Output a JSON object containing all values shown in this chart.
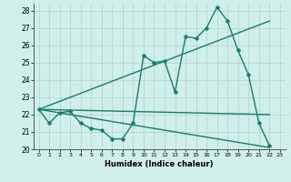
{
  "xlabel": "Humidex (Indice chaleur)",
  "xlim": [
    -0.5,
    23.5
  ],
  "ylim": [
    20,
    28.4
  ],
  "yticks": [
    20,
    21,
    22,
    23,
    24,
    25,
    26,
    27,
    28
  ],
  "xticks": [
    0,
    1,
    2,
    3,
    4,
    5,
    6,
    7,
    8,
    9,
    10,
    11,
    12,
    13,
    14,
    15,
    16,
    17,
    18,
    19,
    20,
    21,
    22,
    23
  ],
  "bg_color": "#d0eeea",
  "grid_color": "#b0d8d2",
  "line_color": "#1a7a6e",
  "line_width": 1.0,
  "marker_size": 2.5,
  "series": [
    {
      "x": [
        0,
        1,
        2,
        3,
        4,
        5,
        6,
        7,
        8,
        9,
        10,
        11,
        12,
        13,
        14,
        15,
        16,
        17,
        18,
        19,
        20,
        21,
        22
      ],
      "y": [
        22.3,
        21.5,
        22.1,
        22.2,
        21.5,
        21.2,
        21.1,
        20.6,
        20.6,
        21.5,
        25.4,
        25.0,
        25.1,
        23.3,
        26.5,
        26.4,
        27.0,
        28.2,
        27.4,
        25.7,
        24.3,
        21.5,
        20.2
      ],
      "has_markers": true
    },
    {
      "x": [
        0,
        22
      ],
      "y": [
        22.3,
        27.4
      ],
      "has_markers": false
    },
    {
      "x": [
        0,
        22
      ],
      "y": [
        22.3,
        22.0
      ],
      "has_markers": false
    },
    {
      "x": [
        0,
        22
      ],
      "y": [
        22.3,
        20.1
      ],
      "has_markers": false
    }
  ]
}
